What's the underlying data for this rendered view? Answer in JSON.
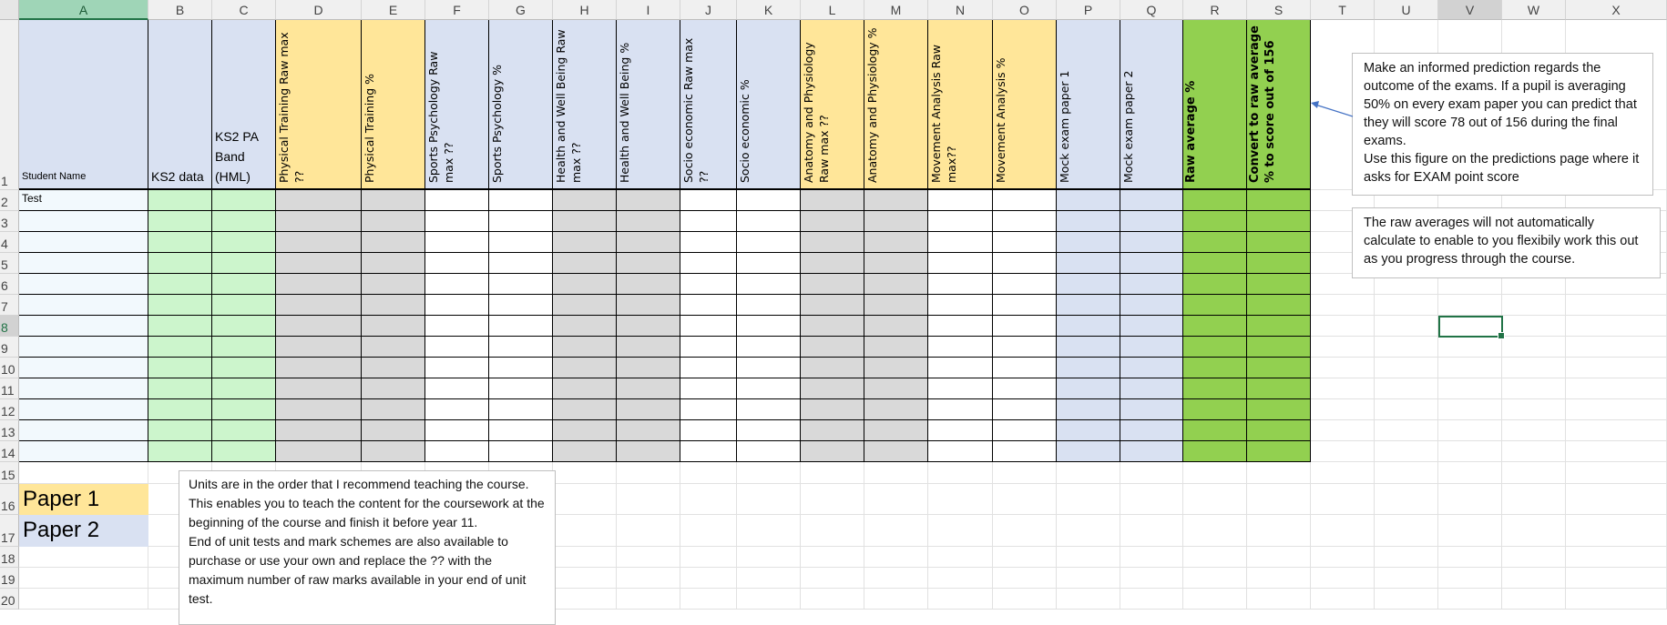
{
  "columns": [
    "A",
    "B",
    "C",
    "D",
    "E",
    "F",
    "G",
    "H",
    "I",
    "J",
    "K",
    "L",
    "M",
    "N",
    "O",
    "P",
    "Q",
    "R",
    "S",
    "T",
    "U",
    "V",
    "W",
    "X"
  ],
  "selected_column": "V",
  "highlight_column": "A",
  "rows": [
    "1",
    "2",
    "3",
    "4",
    "5",
    "6",
    "7",
    "8",
    "9",
    "10",
    "11",
    "12",
    "13",
    "14",
    "15",
    "16",
    "17",
    "18",
    "19",
    "20"
  ],
  "selected_row": "8",
  "headers": [
    {
      "col": "A",
      "text": "Student Name",
      "fill": "#d9e1f2"
    },
    {
      "col": "B",
      "text": "KS2 data",
      "fill": "#d9e1f2"
    },
    {
      "col": "C",
      "text": "KS2 PA Band (HML)",
      "fill": "#d9e1f2"
    },
    {
      "col": "D",
      "text": "Physical Training Raw max ??",
      "fill": "#ffe699"
    },
    {
      "col": "E",
      "text": "Physical Training %",
      "fill": "#ffe699"
    },
    {
      "col": "F",
      "text": "Sports Psychology Raw max ??",
      "fill": "#d9e1f2"
    },
    {
      "col": "G",
      "text": "Sports Psychology %",
      "fill": "#d9e1f2"
    },
    {
      "col": "H",
      "text": "Health and Well Being Raw max ??",
      "fill": "#d9e1f2"
    },
    {
      "col": "I",
      "text": "Health and Well Being %",
      "fill": "#d9e1f2"
    },
    {
      "col": "J",
      "text": "Socio economic Raw max ??",
      "fill": "#d9e1f2"
    },
    {
      "col": "K",
      "text": "Socio economic %",
      "fill": "#d9e1f2"
    },
    {
      "col": "L",
      "text": "Anatomy and Physiology Raw max ??",
      "fill": "#ffe699"
    },
    {
      "col": "M",
      "text": "Anatomy and Physiology %",
      "fill": "#ffe699"
    },
    {
      "col": "N",
      "text": "Movement Analysis Raw max??",
      "fill": "#ffe699"
    },
    {
      "col": "O",
      "text": "Movement Analysis %",
      "fill": "#ffe699"
    },
    {
      "col": "P",
      "text": "Mock exam paper 1",
      "fill": "#d9e1f2"
    },
    {
      "col": "Q",
      "text": "Mock exam paper 2",
      "fill": "#d9e1f2"
    },
    {
      "col": "R",
      "text": "Raw average %",
      "fill": "#92d050",
      "bold": true
    },
    {
      "col": "S",
      "text": "Convert to raw average % to score out of 156",
      "fill": "#92d050",
      "bold": true
    }
  ],
  "body_fills": [
    "#f2f9fd",
    "#ccf5cc",
    "#ccf5cc",
    "#d9d9d9",
    "#d9d9d9",
    "#ffffff",
    "#ffffff",
    "#d9d9d9",
    "#d9d9d9",
    "#ffffff",
    "#ffffff",
    "#d9d9d9",
    "#d9d9d9",
    "#ffffff",
    "#ffffff",
    "#d9e1f2",
    "#d9e1f2",
    "#92d050",
    "#92d050"
  ],
  "cells": {
    "A2": "Test"
  },
  "legend": [
    {
      "label": "Paper 1",
      "fill": "#ffe699"
    },
    {
      "label": "Paper 2",
      "fill": "#d9e1f2"
    }
  ],
  "notes": {
    "units_order": "Units are in the order that I recommend teaching the course. This enables you to teach the content for the coursework at the beginning of the course and finish it before year 11.\nEnd of unit tests and mark schemes are also available to purchase or use your own and replace the ?? with the maximum number of raw marks available in your end of unit test.",
    "prediction": "Make an informed prediction regards the outcome of the exams. If a pupil is averaging 50% on every exam paper you can predict that they will score 78 out of 156 during the final exams.\nUse this figure on the predictions page where it asks for EXAM point score",
    "raw_averages": "The raw averages will not automatically calculate to enable to you flexibily work this out as you progress through the course."
  },
  "colors": {
    "selection": "#217346",
    "arrow": "#4472c4"
  }
}
